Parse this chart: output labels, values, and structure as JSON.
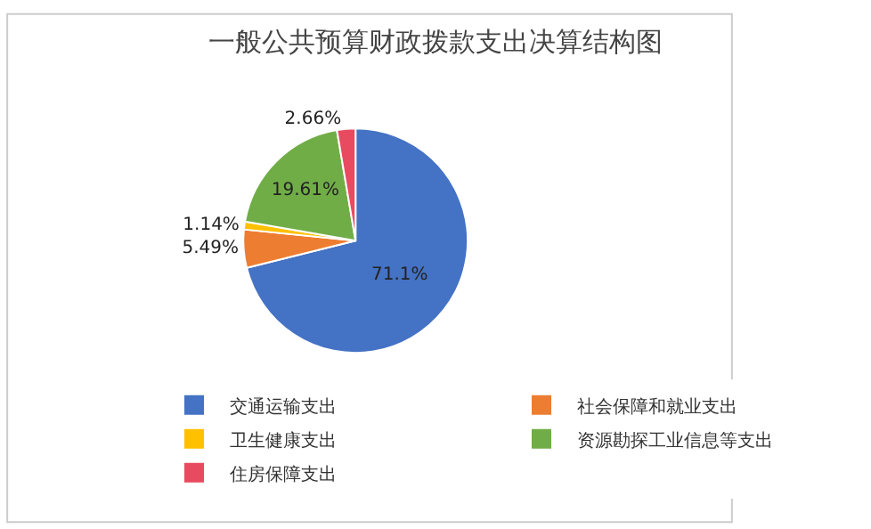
{
  "chart_data": {
    "type": "pie",
    "title": "一般公共预算财政拨款支出决算结构图",
    "categories": [
      "交通运输支出",
      "社会保障和就业支出",
      "卫生健康支出",
      "资源勘探工业信息等支出",
      "住房保障支出"
    ],
    "values": [
      71.1,
      5.49,
      1.14,
      19.61,
      2.66
    ],
    "value_labels": [
      "71.1%",
      "5.49%",
      "1.14%",
      "19.61%",
      "2.66%"
    ],
    "colors": [
      "#4472c4",
      "#ed7d31",
      "#ffc000",
      "#70ad47",
      "#e84a5f"
    ],
    "legend": "bottom"
  }
}
